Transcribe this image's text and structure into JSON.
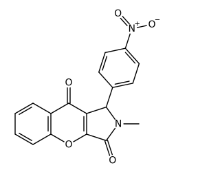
{
  "atoms": [
    {
      "symbol": "O"
    },
    {
      "symbol": "O"
    },
    {
      "symbol": "N"
    },
    {
      "symbol": "O"
    },
    {
      "symbol": "N",
      "charge": "+"
    },
    {
      "symbol": "O",
      "charge": "−"
    },
    {
      "symbol": "O"
    }
  ]
}
